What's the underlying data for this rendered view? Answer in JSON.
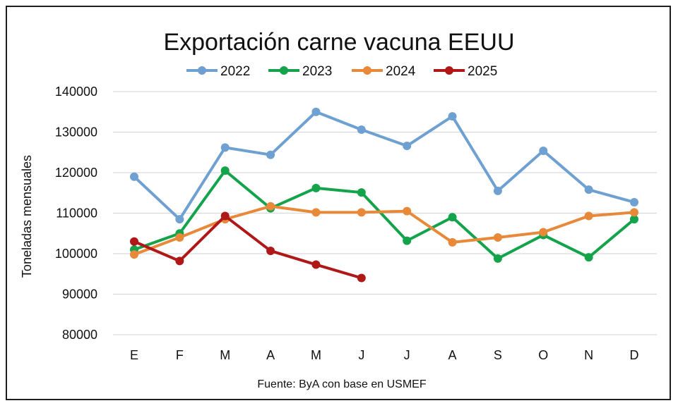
{
  "chart_data": {
    "type": "line",
    "title": "Exportación carne vacuna EEUU",
    "ylabel": "Toneladas mensuales",
    "xlabel": "",
    "source": "Fuente: ByA con base en USMEF",
    "categories": [
      "E",
      "F",
      "M",
      "A",
      "M",
      "J",
      "J",
      "A",
      "S",
      "O",
      "N",
      "D"
    ],
    "ylim": [
      80000,
      140000
    ],
    "yticks": [
      80000,
      90000,
      100000,
      110000,
      120000,
      130000,
      140000
    ],
    "grid": true,
    "legend_position": "top",
    "series": [
      {
        "name": "2022",
        "color": "#6fa0d2",
        "values": [
          119000,
          108500,
          126200,
          124400,
          135000,
          130600,
          126600,
          133900,
          115500,
          125400,
          115800,
          112700
        ]
      },
      {
        "name": "2023",
        "color": "#13a34a",
        "values": [
          101000,
          105000,
          120500,
          111200,
          116200,
          115100,
          103200,
          109000,
          98800,
          104600,
          99100,
          108500
        ]
      },
      {
        "name": "2024",
        "color": "#e8893a",
        "values": [
          99800,
          104000,
          108500,
          111700,
          110200,
          110200,
          110500,
          102800,
          104000,
          105300,
          109300,
          110200
        ]
      },
      {
        "name": "2025",
        "color": "#b01818",
        "values": [
          103000,
          98200,
          109300,
          100700,
          97300,
          94000,
          null,
          null,
          null,
          null,
          null,
          null
        ]
      }
    ]
  }
}
